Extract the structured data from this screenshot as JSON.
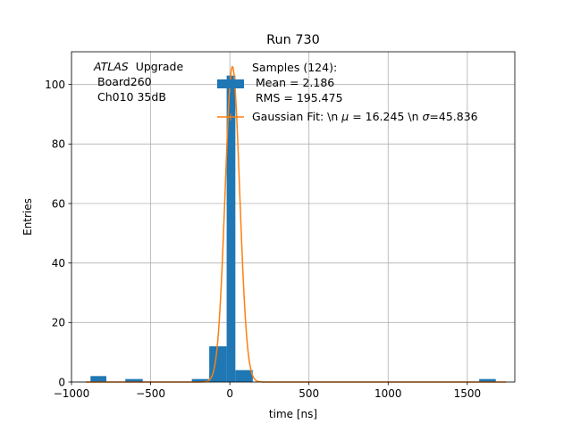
{
  "chart_data": {
    "type": "bar",
    "title": "Run 730",
    "xlabel": "time [ns]",
    "ylabel": "Entries",
    "xlim": [
      -1000,
      1800
    ],
    "ylim": [
      0,
      111
    ],
    "grid": true,
    "x_ticks": [
      -1000,
      -500,
      0,
      500,
      1000,
      1500
    ],
    "x_tick_labels": [
      "−1000",
      "−500",
      "0",
      "500",
      "1000",
      "1500"
    ],
    "y_ticks": [
      0,
      20,
      40,
      60,
      80,
      100
    ],
    "y_tick_labels": [
      "0",
      "20",
      "40",
      "60",
      "80",
      "100"
    ],
    "bar_color": "#1f77b4",
    "fit_color": "#ff7f0e",
    "histogram": {
      "bin_edges": [
        -880,
        -775,
        -670,
        -565,
        -460,
        -355,
        -250,
        -145,
        -40,
        65,
        170,
        275,
        380,
        485,
        590,
        695,
        800,
        905,
        1010,
        1115,
        1220,
        1325,
        1430,
        1535,
        1640,
        1745
      ],
      "bar_left_edges": [
        -880,
        -660,
        -240,
        -130,
        -20,
        35,
        1575
      ],
      "bar_widths": [
        100,
        110,
        110,
        110,
        55,
        110,
        105
      ],
      "bar_values": [
        2,
        1,
        1,
        12,
        103,
        4,
        1
      ]
    },
    "gaussian_fit": {
      "amplitude": 106,
      "mu": 16.245,
      "sigma": 45.836
    },
    "annotation": {
      "experiment": "ATLAS",
      "label": "Upgrade",
      "board": "Board260",
      "channel": "Ch010 35dB"
    },
    "legend": {
      "placement": "top-right",
      "samples_title": "Samples (124):",
      "mean_line": "Mean = 2.186",
      "rms_line": "RMS = 195.475",
      "fit_prefix": "Gaussian Fit: \\n ",
      "fit_mu_symbol": "μ",
      "fit_mu_value": " = 16.245 \\n ",
      "fit_sigma_symbol": "σ",
      "fit_sigma_value": "=45.836"
    }
  }
}
